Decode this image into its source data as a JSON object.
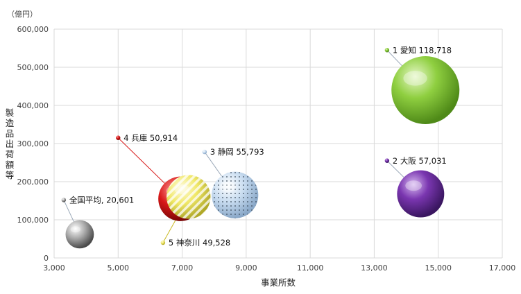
{
  "chart_data": {
    "type": "bubble",
    "xlabel": "事業所数",
    "ylabel": "製造品出荷額等",
    "yunit": "（億円）",
    "xlim": [
      3000,
      17000
    ],
    "ylim": [
      0,
      600000
    ],
    "xticks": [
      "3,000",
      "5,000",
      "7,000",
      "9,000",
      "11,000",
      "13,000",
      "15,000",
      "17,000"
    ],
    "yticks": [
      "0",
      "100,000",
      "200,000",
      "300,000",
      "400,000",
      "500,000",
      "600,000"
    ],
    "grid": true,
    "points": [
      {
        "label": "1 愛知 118,718",
        "x": 14600,
        "y": 440000,
        "size": 118718,
        "color": "#8fcf40",
        "label_x": 13400,
        "label_y": 545000
      },
      {
        "label": "2 大阪 57,031",
        "x": 14450,
        "y": 168000,
        "size": 57031,
        "color": "#6a2ea0",
        "label_x": 13400,
        "label_y": 255000
      },
      {
        "label": "3 静岡 55,793",
        "x": 8650,
        "y": 165000,
        "size": 55793,
        "color": "#b8d4ec",
        "label_x": 7700,
        "label_y": 278000
      },
      {
        "label": "4 兵庫 50,914",
        "x": 6950,
        "y": 155000,
        "size": 50914,
        "color": "#d81818",
        "label_x": 5000,
        "label_y": 315000
      },
      {
        "label": "5 神奈川 49,528",
        "x": 7200,
        "y": 160000,
        "size": 49528,
        "color": "#f0e868",
        "label_x": 6400,
        "label_y": 40000
      },
      {
        "label": "全国平均, 20,601",
        "x": 3800,
        "y": 62000,
        "size": 20601,
        "color": "#9a9a9a",
        "label_x": 3300,
        "label_y": 152000
      }
    ]
  }
}
